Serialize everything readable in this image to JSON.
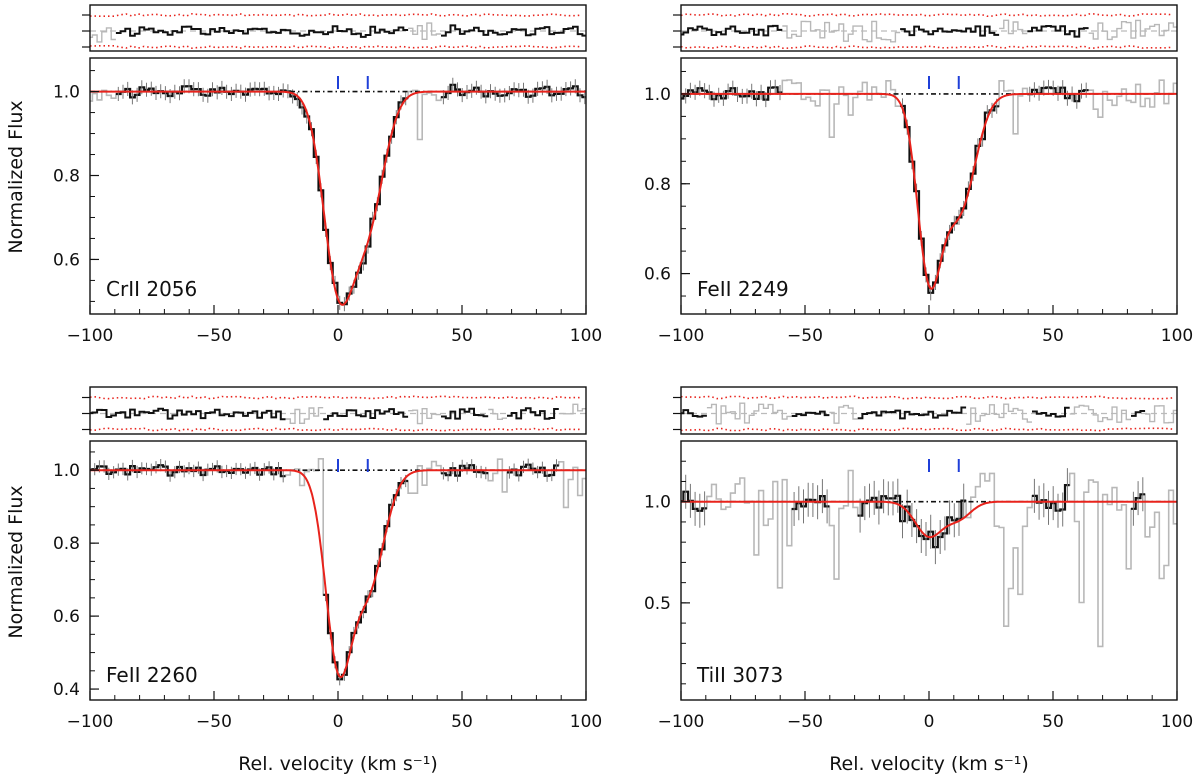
{
  "chart_data": [
    {
      "type": "line",
      "ion_label": "CrII 2056",
      "xlabel": "",
      "ylabel": "Normalized Flux",
      "xlim": [
        -100,
        100
      ],
      "ylim": [
        0.47,
        1.08
      ],
      "x_ticks": [
        -100,
        -50,
        0,
        50,
        100
      ],
      "x_tick_labels": [
        "−100",
        "−50",
        "0",
        "50",
        "100"
      ],
      "y_ticks": [
        0.6,
        0.8,
        1.0
      ],
      "y_tick_labels": [
        "0.6",
        "0.8",
        "1.0"
      ],
      "component_velocities": [
        0,
        12
      ],
      "continuum": 1.0,
      "fit": {
        "baseline": 1.0,
        "components": [
          {
            "v": 0,
            "depth": 0.44,
            "sigma": 6.0
          },
          {
            "v": 12,
            "depth": 0.3,
            "sigma": 6.5
          }
        ]
      },
      "data_range": [
        -90,
        100
      ],
      "masked_ranges": [
        [
          28,
          42
        ]
      ],
      "noise": 0.012
    },
    {
      "type": "line",
      "ion_label": "FeII 2249",
      "xlabel": "",
      "ylabel": "",
      "xlim": [
        -100,
        100
      ],
      "ylim": [
        0.51,
        1.08
      ],
      "x_ticks": [
        -100,
        -50,
        0,
        50,
        100
      ],
      "x_tick_labels": [
        "−100",
        "−50",
        "0",
        "50",
        "100"
      ],
      "y_ticks": [
        0.6,
        0.8,
        1.0
      ],
      "y_tick_labels": [
        "0.6",
        "0.8",
        "1.0"
      ],
      "component_velocities": [
        0,
        12
      ],
      "continuum": 1.0,
      "fit": {
        "baseline": 1.0,
        "components": [
          {
            "v": 0,
            "depth": 0.38,
            "sigma": 4.8
          },
          {
            "v": 12,
            "depth": 0.26,
            "sigma": 6.5
          }
        ]
      },
      "data_range": [
        -100,
        65
      ],
      "masked_ranges": [
        [
          -60,
          -12
        ],
        [
          28,
          40
        ]
      ],
      "noise": 0.012
    },
    {
      "type": "line",
      "ion_label": "FeII 2260",
      "xlabel": "Rel. velocity  (km s⁻¹)",
      "ylabel": "Normalized Flux",
      "xlim": [
        -100,
        100
      ],
      "ylim": [
        0.37,
        1.08
      ],
      "x_ticks": [
        -100,
        -50,
        0,
        50,
        100
      ],
      "x_tick_labels": [
        "−100",
        "−50",
        "0",
        "50",
        "100"
      ],
      "y_ticks": [
        0.4,
        0.6,
        0.8,
        1.0
      ],
      "y_tick_labels": [
        "0.4",
        "0.6",
        "0.8",
        "1.0"
      ],
      "component_velocities": [
        0,
        12
      ],
      "continuum": 1.0,
      "fit": {
        "baseline": 1.0,
        "components": [
          {
            "v": 0,
            "depth": 0.5,
            "sigma": 5.2
          },
          {
            "v": 12,
            "depth": 0.32,
            "sigma": 6.5
          }
        ]
      },
      "data_range": [
        -100,
        100
      ],
      "masked_ranges": [
        [
          -22,
          -6
        ],
        [
          28,
          42
        ],
        [
          60,
          68
        ],
        [
          90,
          100
        ]
      ],
      "noise": 0.012
    },
    {
      "type": "line",
      "ion_label": "TiII 3073",
      "xlabel": "Rel. velocity  (km s⁻¹)",
      "ylabel": "",
      "xlim": [
        -100,
        100
      ],
      "ylim": [
        0.02,
        1.3
      ],
      "x_ticks": [
        -100,
        -50,
        0,
        50,
        100
      ],
      "x_tick_labels": [
        "−100",
        "−50",
        "0",
        "50",
        "100"
      ],
      "y_ticks": [
        0.5,
        1.0
      ],
      "y_tick_labels": [
        "0.5",
        "1.0"
      ],
      "component_velocities": [
        0,
        12
      ],
      "continuum": 1.0,
      "fit": {
        "baseline": 1.0,
        "components": [
          {
            "v": 0,
            "depth": 0.17,
            "sigma": 5.5
          },
          {
            "v": 12,
            "depth": 0.08,
            "sigma": 5.0
          }
        ]
      },
      "data_range": [
        -100,
        100
      ],
      "masked_ranges": [
        [
          -90,
          -55
        ],
        [
          -40,
          -28
        ],
        [
          15,
          42
        ],
        [
          57,
          82
        ],
        [
          88,
          100
        ]
      ],
      "noise": 0.06
    }
  ]
}
